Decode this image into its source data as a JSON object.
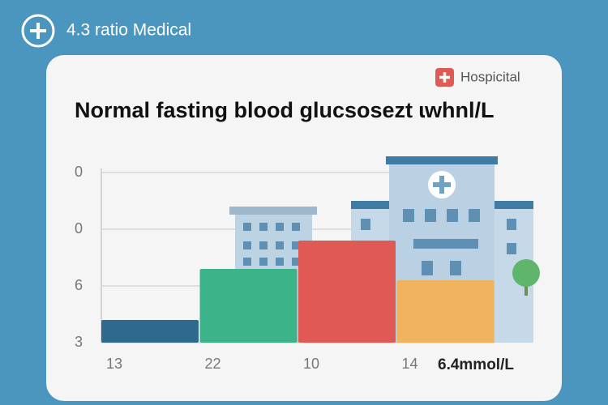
{
  "header": {
    "title": "4.3 ratio Medical",
    "badge": "Hospicital"
  },
  "chart_data": {
    "type": "bar",
    "title": "Normal fasting blood glucsosezt ɩwhnl/L",
    "categories": [
      "13",
      "22",
      "10",
      "14"
    ],
    "values": [
      0.4,
      1.3,
      1.8,
      1.1
    ],
    "colors": [
      "#2e6a8e",
      "#3db38a",
      "#e05a55",
      "#f0b45e"
    ],
    "ylim": [
      0,
      3
    ],
    "yticks": [
      {
        "value": 0,
        "label": "3"
      },
      {
        "value": 1,
        "label": "6"
      },
      {
        "value": 2,
        "label": "0"
      },
      {
        "value": 3,
        "label": "0"
      }
    ],
    "grid": true,
    "annotation": "6.4mmol/L"
  }
}
